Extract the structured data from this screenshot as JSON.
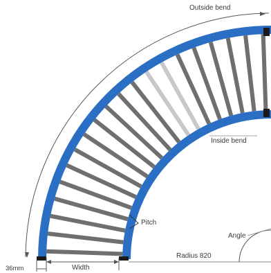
{
  "labels": {
    "outside_bend": "Outside bend",
    "inside_bend": "Inside bend",
    "pitch": "Pitch",
    "angle": "Angle",
    "radius": "Radius 820",
    "width": "Width",
    "rail_width": "36mm"
  },
  "colors": {
    "frame_blue": "#2a6fc4",
    "frame_blue_dark": "#1e56a0",
    "roller_grey": "#6f6f6f",
    "roller_highlight": "#c8c8c8",
    "dimension_line": "#555555",
    "end_cap": "#1a1a1a"
  },
  "diagram": {
    "type": "curved roller conveyor, 90 degree bend, top view",
    "roller_count": 20,
    "highlighted_rollers": [
      12,
      13
    ]
  }
}
